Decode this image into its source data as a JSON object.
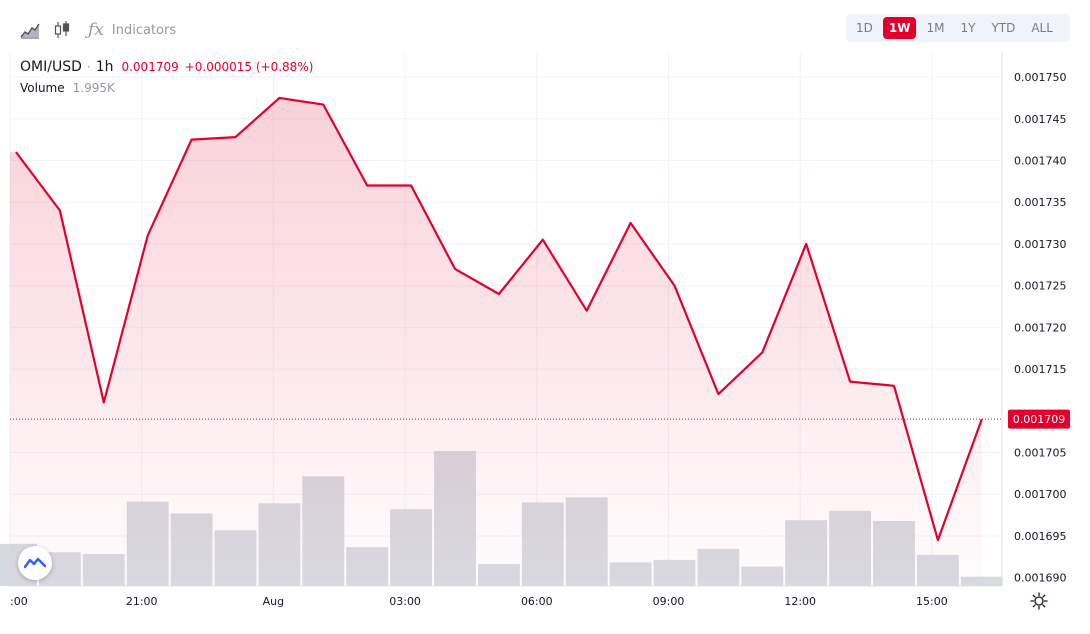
{
  "toolbar": {
    "chart_type_icon": "area-chart-icon",
    "candles_icon": "candlestick-icon",
    "indicators_label": "Indicators",
    "ranges": [
      {
        "label": "1D",
        "active": false
      },
      {
        "label": "1W",
        "active": true
      },
      {
        "label": "1M",
        "active": false
      },
      {
        "label": "1Y",
        "active": false
      },
      {
        "label": "YTD",
        "active": false
      },
      {
        "label": "ALL",
        "active": false
      }
    ]
  },
  "legend": {
    "symbol": "OMI/USD",
    "separator": "·",
    "interval": "1h",
    "price": "0.001709",
    "change": "+0.000015 (+0.88%)",
    "volume_label": "Volume",
    "volume_value": "1.995K"
  },
  "colors": {
    "line": "#e3002b",
    "volume": "#d1d4dc",
    "grid": "#f0f3fa",
    "accent": "#e3002b"
  },
  "chart_data": {
    "type": "area",
    "x_tick_labels": [
      ":00",
      "21:00",
      "Aug",
      "03:00",
      "06:00",
      "09:00",
      "12:00",
      "15:00"
    ],
    "y_tick_labels": [
      "0.001750",
      "0.001745",
      "0.001740",
      "0.001735",
      "0.001730",
      "0.001725",
      "0.001720",
      "0.001715",
      "0.001705",
      "0.001700",
      "0.001695",
      "0.001690"
    ],
    "y_ticks": [
      0.00175,
      0.001745,
      0.00174,
      0.001735,
      0.00173,
      0.001725,
      0.00172,
      0.001715,
      0.001705,
      0.0017,
      0.001695,
      0.00169
    ],
    "ylim": [
      0.001689,
      0.001753
    ],
    "last_price": 0.001709,
    "last_price_label": "0.001709",
    "price": [
      0.001741,
      0.001734,
      0.001711,
      0.001731,
      0.0017425,
      0.0017428,
      0.0017475,
      0.0017467,
      0.001737,
      0.001737,
      0.001727,
      0.001724,
      0.0017305,
      0.001722,
      0.0017325,
      0.001725,
      0.001712,
      0.001717,
      0.00173,
      0.0017135,
      0.001713,
      0.0016945,
      0.001709
    ],
    "volume": [
      0.5,
      0.4,
      0.38,
      1,
      0.86,
      0.66,
      0.98,
      1.3,
      0.46,
      0.91,
      1.6,
      0.26,
      0.99,
      1.05,
      0.28,
      0.31,
      0.44,
      0.23,
      0.78,
      0.89,
      0.77,
      0.37,
      0.11
    ]
  }
}
